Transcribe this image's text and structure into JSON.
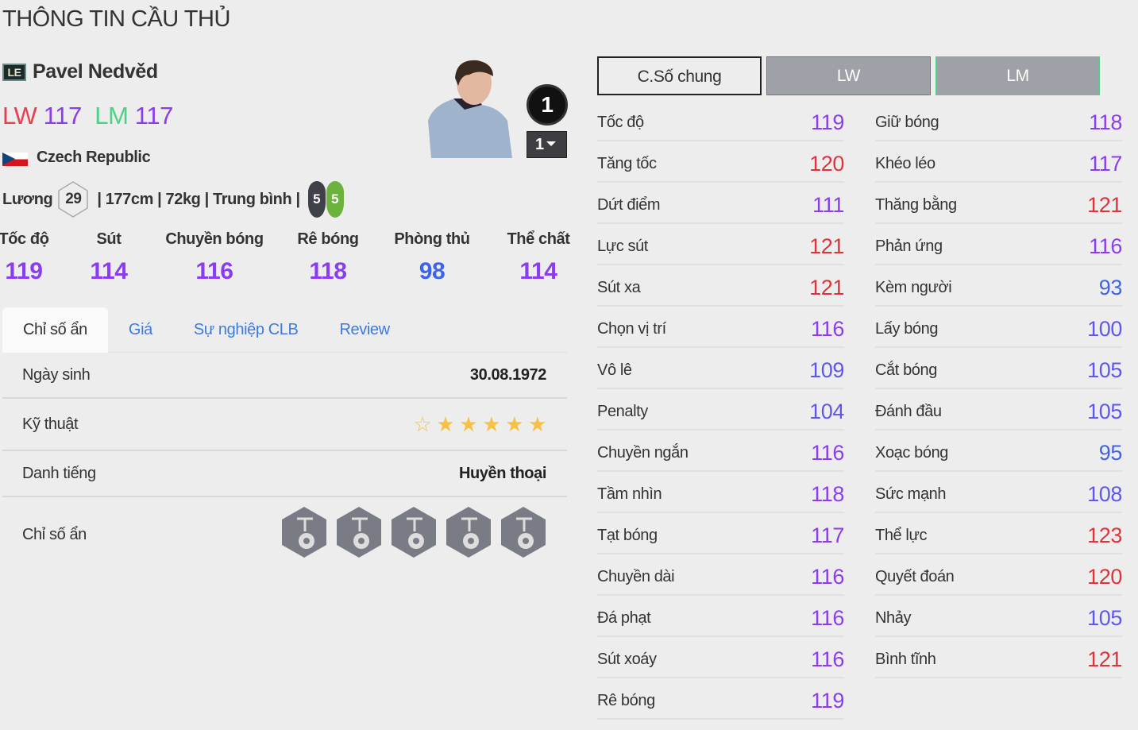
{
  "page_title": "THÔNG TIN CẦU THỦ",
  "player": {
    "season_badge": "LE",
    "name": "Pavel Nedvěd",
    "positions": [
      {
        "pos": "LW",
        "ovr": "117",
        "color": "#e8404f"
      },
      {
        "pos": "LM",
        "ovr": "117",
        "color": "#4fcf8a"
      }
    ],
    "ovr_color": "#8a3cf0",
    "nation": "Czech Republic",
    "salary_label": "Lương",
    "salary": "29",
    "info": "| 177cm | 72kg | Trung bình |",
    "weak_foot": "5",
    "strong_foot": "5",
    "rank": "1",
    "level": "1"
  },
  "summary": [
    {
      "label": "Tốc độ",
      "value": "119"
    },
    {
      "label": "Sút",
      "value": "114"
    },
    {
      "label": "Chuyền bóng",
      "value": "116"
    },
    {
      "label": "Rê bóng",
      "value": "118"
    },
    {
      "label": "Phòng thủ",
      "value": "98"
    },
    {
      "label": "Thể chất",
      "value": "114"
    }
  ],
  "tabs": [
    "Chỉ số ẩn",
    "Giá",
    "Sự nghiệp CLB",
    "Review"
  ],
  "details": {
    "birth_label": "Ngày sinh",
    "birth": "30.08.1972",
    "skill_label": "Kỹ thuật",
    "skill_stars": 5,
    "skill_stars_max": 6,
    "rep_label": "Danh tiếng",
    "rep": "Huyền thoại",
    "traits_label": "Chỉ số ẩn",
    "traits": [
      "long-shot-icon",
      "power-header-icon",
      "speed-dribbler-icon",
      "chip-shot-icon",
      "stamina-lungs-icon"
    ]
  },
  "position_tabs": [
    {
      "label": "C.Số chung",
      "active": true
    },
    {
      "label": "LW",
      "border": "#e8404f"
    },
    {
      "label": "LM",
      "border": "#4fcf8a"
    }
  ],
  "stat_colors": {
    "high": "#e0323a",
    "good": "#8a3cf0",
    "mid": "#5e56f0",
    "low": "#3e63e8"
  },
  "stats_left": [
    [
      "Tốc độ",
      "119"
    ],
    [
      "Tăng tốc",
      "120"
    ],
    [
      "Dứt điểm",
      "111"
    ],
    [
      "Lực sút",
      "121"
    ],
    [
      "Sút xa",
      "121"
    ],
    [
      "Chọn vị trí",
      "116"
    ],
    [
      "Vô lê",
      "109"
    ],
    [
      "Penalty",
      "104"
    ],
    [
      "Chuyền ngắn",
      "116"
    ],
    [
      "Tầm nhìn",
      "118"
    ],
    [
      "Tạt bóng",
      "117"
    ],
    [
      "Chuyền dài",
      "116"
    ],
    [
      "Đá phạt",
      "116"
    ],
    [
      "Sút xoáy",
      "116"
    ],
    [
      "Rê bóng",
      "119"
    ]
  ],
  "stats_right": [
    [
      "Giữ bóng",
      "118"
    ],
    [
      "Khéo léo",
      "117"
    ],
    [
      "Thăng bằng",
      "121"
    ],
    [
      "Phản ứng",
      "116"
    ],
    [
      "Kèm người",
      "93"
    ],
    [
      "Lấy bóng",
      "100"
    ],
    [
      "Cắt bóng",
      "105"
    ],
    [
      "Đánh đầu",
      "105"
    ],
    [
      "Xoạc bóng",
      "95"
    ],
    [
      "Sức mạnh",
      "108"
    ],
    [
      "Thể lực",
      "123"
    ],
    [
      "Quyết đoán",
      "120"
    ],
    [
      "Nhảy",
      "105"
    ],
    [
      "Bình tĩnh",
      "121"
    ]
  ]
}
